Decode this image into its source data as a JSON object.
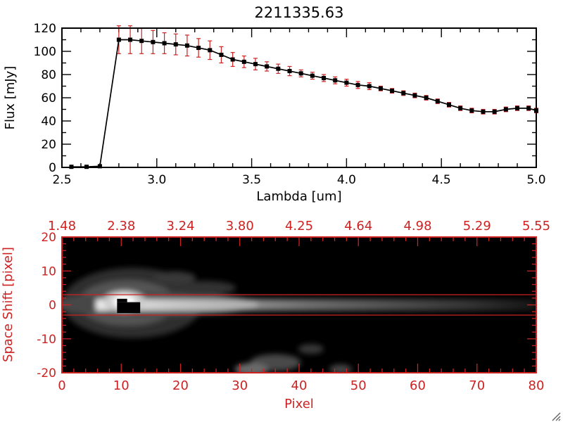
{
  "window": {
    "background": "#ffffff"
  },
  "chart_data": [
    {
      "type": "line",
      "title": "2211335.63",
      "xlabel": "Lambda [um]",
      "ylabel": "Flux [mJy]",
      "xlim": [
        2.5,
        5.0
      ],
      "ylim": [
        0,
        120
      ],
      "xticks": [
        2.5,
        3.0,
        3.5,
        4.0,
        4.5,
        5.0
      ],
      "xtick_labels": [
        "2.5",
        "3.0",
        "3.5",
        "4.0",
        "4.5",
        "5.0"
      ],
      "xminor": 0.1,
      "yticks": [
        0,
        20,
        40,
        60,
        80,
        100,
        120
      ],
      "ytick_labels": [
        "0",
        "20",
        "40",
        "60",
        "80",
        "100",
        "120"
      ],
      "yminor": 10,
      "line_color": "#000000",
      "marker": "filled-square",
      "marker_color": "#000000",
      "error_color": "#cc2222",
      "x": [
        2.55,
        2.63,
        2.7,
        2.8,
        2.86,
        2.92,
        2.98,
        3.04,
        3.1,
        3.16,
        3.22,
        3.28,
        3.34,
        3.4,
        3.46,
        3.52,
        3.58,
        3.64,
        3.7,
        3.76,
        3.82,
        3.88,
        3.94,
        4.0,
        4.06,
        4.12,
        4.18,
        4.24,
        4.3,
        4.36,
        4.42,
        4.48,
        4.54,
        4.6,
        4.66,
        4.72,
        4.78,
        4.84,
        4.9,
        4.96,
        5.0
      ],
      "y": [
        0.5,
        0.5,
        1,
        110,
        110,
        109,
        108,
        107,
        106,
        105,
        103,
        101,
        97,
        93,
        91,
        89,
        87,
        85,
        83,
        81,
        79,
        77,
        75,
        73,
        71,
        70,
        68,
        66,
        64,
        62,
        60,
        57,
        54,
        51,
        49,
        48,
        48,
        50,
        51,
        51,
        49
      ],
      "err": [
        1,
        1,
        1,
        12,
        12,
        11,
        10,
        9,
        9,
        9,
        8,
        8,
        7,
        6,
        5,
        5,
        4,
        4,
        4,
        3,
        3,
        3,
        3,
        3,
        3,
        3,
        2,
        2,
        2,
        2,
        2,
        2,
        2,
        2,
        2,
        2,
        2,
        2,
        2,
        2,
        2
      ]
    },
    {
      "type": "heatmap",
      "xlabel": "Pixel",
      "ylabel": "Space Shift [pixel]",
      "xlim": [
        0,
        80
      ],
      "ylim": [
        -20,
        20
      ],
      "xticks": [
        0,
        10,
        20,
        30,
        40,
        50,
        60,
        70,
        80
      ],
      "xtick_labels": [
        "0",
        "10",
        "20",
        "30",
        "40",
        "50",
        "60",
        "70",
        "80"
      ],
      "xminor": 2,
      "yticks": [
        -20,
        -10,
        0,
        10,
        20
      ],
      "ytick_labels": [
        "-20",
        "-10",
        "0",
        "10",
        "20"
      ],
      "yminor": 2,
      "top_axis_labels": [
        "1.48",
        "2.38",
        "3.24",
        "3.80",
        "4.25",
        "4.64",
        "4.98",
        "5.29",
        "5.55"
      ],
      "axis_color": "#cc2222",
      "background": "#000000",
      "extraction_window_shift": [
        -3,
        3
      ],
      "point_source": {
        "pixel": 10.5,
        "shift": 1
      },
      "masked_region": {
        "pixel_range": [
          9.3,
          13.2
        ],
        "shift_range": [
          -2.4,
          1.8
        ]
      },
      "trace_description": "bright horizontal spectral trace along shift 0, brightest near pixel 10, fading toward pixel 80"
    }
  ]
}
